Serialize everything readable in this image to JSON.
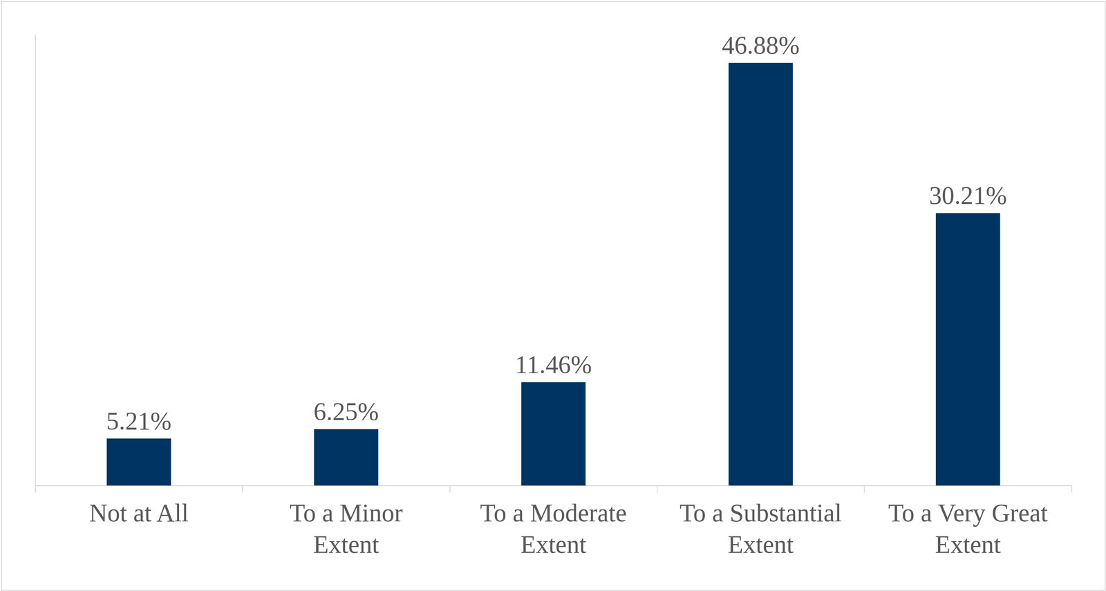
{
  "chart_data": {
    "type": "bar",
    "categories": [
      "Not at All",
      "To a Minor Extent",
      "To a Moderate Extent",
      "To a Substantial Extent",
      "To a Very Great Extent"
    ],
    "values": [
      5.21,
      6.25,
      11.46,
      46.88,
      30.21
    ],
    "value_labels": [
      "5.21%",
      "6.25%",
      "11.46%",
      "46.88%",
      "30.21%"
    ],
    "color": "#003462",
    "ylim": [
      0,
      50
    ],
    "grid": false,
    "data_labels": true,
    "tick_labels": "x"
  }
}
